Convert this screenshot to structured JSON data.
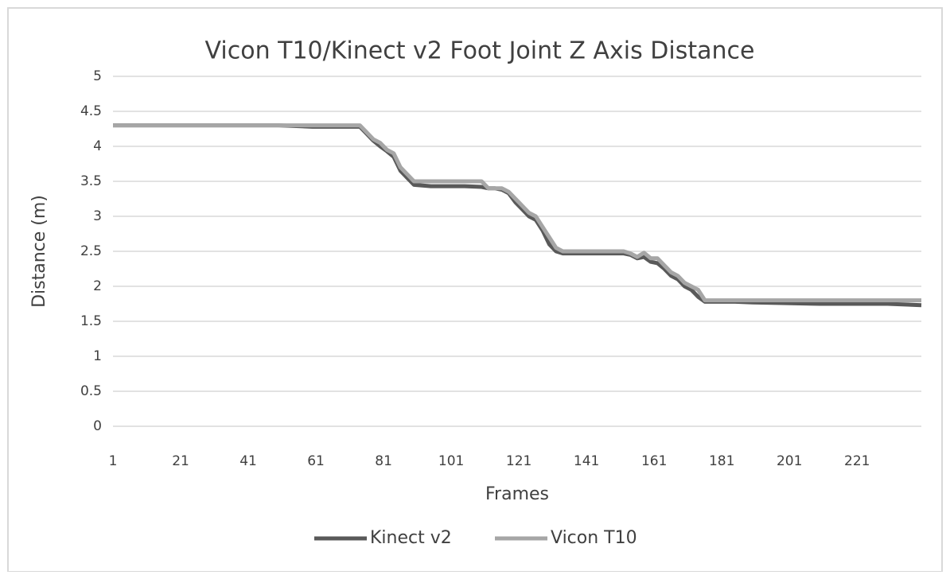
{
  "chart_data": {
    "type": "line",
    "title": "Vicon T10/Kinect v2 Foot Joint Z Axis Distance",
    "x_label": "Frames",
    "y_label": "Distance (m)",
    "x": [
      1,
      10,
      20,
      30,
      40,
      50,
      60,
      70,
      74,
      76,
      78,
      80,
      82,
      84,
      86,
      88,
      90,
      95,
      100,
      105,
      110,
      112,
      114,
      116,
      118,
      120,
      122,
      124,
      126,
      128,
      130,
      132,
      134,
      140,
      145,
      150,
      152,
      154,
      156,
      158,
      160,
      162,
      164,
      166,
      168,
      170,
      172,
      174,
      176,
      178,
      185,
      190,
      200,
      210,
      220,
      230,
      240
    ],
    "series": [
      {
        "name": "Kinect v2",
        "color": "#595959",
        "values": [
          4.3,
          4.3,
          4.3,
          4.3,
          4.3,
          4.3,
          4.28,
          4.28,
          4.28,
          4.18,
          4.08,
          4.0,
          3.93,
          3.85,
          3.65,
          3.55,
          3.45,
          3.43,
          3.43,
          3.43,
          3.42,
          3.4,
          3.4,
          3.38,
          3.33,
          3.2,
          3.1,
          3.0,
          2.95,
          2.8,
          2.6,
          2.5,
          2.47,
          2.47,
          2.47,
          2.47,
          2.47,
          2.45,
          2.4,
          2.42,
          2.35,
          2.33,
          2.25,
          2.15,
          2.1,
          2.0,
          1.95,
          1.85,
          1.78,
          1.78,
          1.78,
          1.77,
          1.76,
          1.75,
          1.75,
          1.75,
          1.73
        ]
      },
      {
        "name": "Vicon T10",
        "color": "#a6a6a6",
        "values": [
          4.3,
          4.3,
          4.3,
          4.3,
          4.3,
          4.3,
          4.3,
          4.3,
          4.3,
          4.2,
          4.1,
          4.05,
          3.95,
          3.9,
          3.7,
          3.6,
          3.5,
          3.5,
          3.5,
          3.5,
          3.5,
          3.4,
          3.4,
          3.4,
          3.35,
          3.25,
          3.15,
          3.05,
          3.0,
          2.85,
          2.7,
          2.55,
          2.5,
          2.5,
          2.5,
          2.5,
          2.5,
          2.47,
          2.42,
          2.48,
          2.4,
          2.4,
          2.3,
          2.2,
          2.15,
          2.05,
          2.0,
          1.95,
          1.8,
          1.8,
          1.8,
          1.8,
          1.8,
          1.8,
          1.8,
          1.8,
          1.8
        ]
      }
    ],
    "xlim": [
      1,
      240
    ],
    "xticks": [
      1,
      21,
      41,
      61,
      81,
      101,
      121,
      141,
      161,
      181,
      201,
      221
    ],
    "ylim": [
      0,
      5
    ],
    "yticks": [
      0,
      0.5,
      1,
      1.5,
      2,
      2.5,
      3,
      3.5,
      4,
      4.5,
      5
    ],
    "grid": true,
    "legend": "bottom"
  }
}
